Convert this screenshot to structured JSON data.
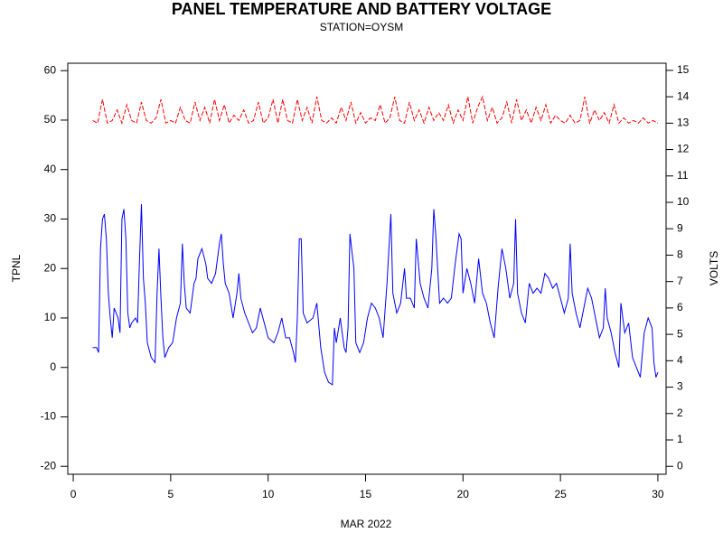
{
  "chart_data": {
    "type": "line",
    "title": "PANEL TEMPERATURE AND BATTERY VOLTAGE",
    "subtitle": "STATION=OYSM",
    "x_label": "MAR 2022",
    "y_label": "TPNL",
    "y2_label": "VOLTS",
    "xlim": [
      -0.28,
      30.42
    ],
    "xticks": [
      0,
      5,
      10,
      15,
      20,
      25,
      30
    ],
    "ylim": [
      -21.6,
      61.5
    ],
    "yticks": [
      -20,
      -10,
      0,
      10,
      20,
      30,
      40,
      50,
      60
    ],
    "y2lim": [
      -0.3,
      15.27
    ],
    "y2ticks": [
      0,
      1,
      2,
      3,
      4,
      5,
      6,
      7,
      8,
      9,
      10,
      11,
      12,
      13,
      14,
      15
    ],
    "grid": false,
    "series": [
      {
        "color": "#0000ff",
        "axis": "y",
        "x": [
          1,
          1.2,
          1.3,
          1.4,
          1.5,
          1.6,
          1.7,
          1.8,
          1.9,
          2,
          2.1,
          2.2,
          2.3,
          2.4,
          2.5,
          2.6,
          2.7,
          2.8,
          2.9,
          3,
          3.2,
          3.3,
          3.4,
          3.5,
          3.6,
          3.7,
          3.8,
          4,
          4.2,
          4.3,
          4.4,
          4.5,
          4.6,
          4.7,
          4.9,
          5.1,
          5.3,
          5.5,
          5.6,
          5.7,
          5.8,
          6,
          6.2,
          6.3,
          6.4,
          6.6,
          6.8,
          6.9,
          7.1,
          7.3,
          7.5,
          7.6,
          7.7,
          7.8,
          8,
          8.2,
          8.4,
          8.5,
          8.6,
          8.8,
          9,
          9.2,
          9.4,
          9.6,
          9.8,
          10,
          10.3,
          10.5,
          10.7,
          10.9,
          11.1,
          11.3,
          11.4,
          11.5,
          11.6,
          11.7,
          11.8,
          12,
          12.3,
          12.5,
          12.7,
          12.9,
          13.1,
          13.3,
          13.4,
          13.5,
          13.7,
          13.9,
          14,
          14.1,
          14.2,
          14.4,
          14.5,
          14.7,
          14.9,
          15.1,
          15.3,
          15.5,
          15.7,
          15.9,
          16.1,
          16.3,
          16.4,
          16.6,
          16.8,
          17,
          17.1,
          17.3,
          17.5,
          17.6,
          17.8,
          18,
          18.2,
          18.4,
          18.5,
          18.6,
          18.8,
          19,
          19.2,
          19.4,
          19.6,
          19.8,
          19.9,
          20,
          20.2,
          20.4,
          20.6,
          20.8,
          21,
          21.2,
          21.4,
          21.6,
          21.8,
          22,
          22.2,
          22.4,
          22.6,
          22.7,
          22.8,
          23,
          23.2,
          23.4,
          23.6,
          23.8,
          24,
          24.2,
          24.4,
          24.6,
          24.8,
          25,
          25.2,
          25.4,
          25.5,
          25.6,
          25.8,
          26,
          26.2,
          26.4,
          26.6,
          26.8,
          27,
          27.2,
          27.3,
          27.4,
          27.6,
          27.8,
          28,
          28.1,
          28.3,
          28.5,
          28.7,
          28.9,
          29.1,
          29.3,
          29.5,
          29.7,
          29.8,
          29.9,
          30
        ],
        "values": [
          4,
          4,
          3,
          24,
          30,
          31,
          26,
          15,
          10,
          6,
          12,
          11,
          10,
          7,
          30,
          32,
          26,
          11,
          8,
          9,
          10,
          9,
          22,
          33,
          18,
          13,
          5,
          2,
          1,
          15,
          24,
          14,
          6,
          2,
          4,
          5,
          10,
          13,
          25,
          17,
          12,
          11,
          17,
          18,
          22,
          24,
          21,
          18,
          17,
          19,
          25,
          27,
          21,
          17,
          15,
          10,
          15,
          19,
          14,
          11,
          9,
          7,
          8,
          12,
          9,
          6,
          5,
          7,
          10,
          6,
          6,
          3,
          1,
          10,
          26,
          26,
          11,
          9,
          10,
          13,
          4,
          -1,
          -3,
          -3.5,
          8,
          5,
          10,
          4,
          3,
          8,
          27,
          20,
          5,
          3,
          5,
          10,
          13,
          12,
          10,
          6,
          17,
          31,
          15,
          11,
          13,
          20,
          14,
          14,
          12,
          26,
          17,
          14,
          12,
          20,
          32,
          27,
          13,
          14,
          13,
          14,
          21,
          27,
          26,
          15,
          20,
          17,
          13,
          22,
          15,
          13,
          9,
          6,
          16,
          24,
          20,
          14,
          17,
          30,
          15,
          11,
          9,
          17,
          15,
          16,
          15,
          19,
          18,
          16,
          17,
          14,
          11,
          14,
          25,
          15,
          11,
          8,
          12,
          16,
          14,
          10,
          6,
          8,
          16,
          10,
          7,
          3,
          0,
          13,
          7,
          9,
          2,
          0,
          -2,
          7,
          10,
          8,
          1,
          -2,
          -1
        ]
      },
      {
        "color": "#ff0000",
        "axis": "y2",
        "x": [
          1,
          1.25,
          1.5,
          1.75,
          2,
          2.25,
          2.5,
          2.75,
          3,
          3.25,
          3.5,
          3.75,
          4,
          4.25,
          4.5,
          4.75,
          5,
          5.25,
          5.5,
          5.75,
          6,
          6.25,
          6.5,
          6.75,
          7,
          7.25,
          7.5,
          7.75,
          8,
          8.25,
          8.5,
          8.75,
          9,
          9.25,
          9.5,
          9.75,
          10,
          10.25,
          10.5,
          10.75,
          11,
          11.25,
          11.5,
          11.75,
          12,
          12.25,
          12.5,
          12.75,
          13,
          13.25,
          13.5,
          13.75,
          14,
          14.25,
          14.5,
          14.75,
          15,
          15.25,
          15.5,
          15.75,
          16,
          16.25,
          16.5,
          16.75,
          17,
          17.25,
          17.5,
          17.75,
          18,
          18.25,
          18.5,
          18.75,
          19,
          19.25,
          19.5,
          19.75,
          20,
          20.25,
          20.5,
          20.75,
          21,
          21.25,
          21.5,
          21.75,
          22,
          22.25,
          22.5,
          22.75,
          23,
          23.25,
          23.5,
          23.75,
          24,
          24.25,
          24.5,
          24.75,
          25,
          25.25,
          25.5,
          25.75,
          26,
          26.25,
          26.5,
          26.75,
          27,
          27.25,
          27.5,
          27.75,
          28,
          28.25,
          28.5,
          28.75,
          29,
          29.25,
          29.5,
          29.75,
          30
        ],
        "values": [
          13.1,
          13.0,
          13.9,
          13.0,
          13.1,
          13.5,
          13.0,
          13.7,
          13.1,
          13.0,
          13.8,
          13.1,
          13.0,
          13.2,
          13.9,
          13.0,
          13.1,
          13.0,
          13.6,
          13.1,
          13.0,
          13.8,
          13.1,
          13.6,
          13.0,
          13.9,
          13.1,
          13.7,
          13.0,
          13.3,
          13.1,
          13.5,
          13.0,
          13.1,
          13.8,
          13.0,
          13.2,
          13.9,
          13.0,
          13.9,
          13.1,
          13.0,
          13.9,
          13.1,
          13.6,
          13.0,
          14.0,
          13.1,
          13.0,
          13.2,
          13.0,
          13.6,
          13.1,
          13.8,
          13.0,
          13.4,
          13.0,
          13.2,
          13.1,
          13.7,
          13.0,
          13.2,
          14.0,
          13.1,
          13.0,
          13.8,
          13.1,
          13.5,
          13.0,
          13.6,
          13.1,
          13.4,
          13.1,
          13.7,
          13.0,
          13.5,
          13.1,
          14.0,
          13.0,
          13.6,
          14.0,
          13.1,
          13.6,
          13.0,
          13.2,
          13.8,
          13.0,
          13.9,
          13.1,
          13.5,
          13.0,
          13.6,
          13.1,
          13.7,
          13.0,
          13.3,
          13.1,
          13.0,
          13.3,
          13.0,
          13.1,
          14.0,
          13.0,
          13.5,
          13.1,
          13.4,
          13.0,
          13.7,
          13.0,
          13.2,
          13.0,
          13.1,
          13.0,
          13.2,
          13.0,
          13.1,
          13.0
        ]
      }
    ]
  }
}
